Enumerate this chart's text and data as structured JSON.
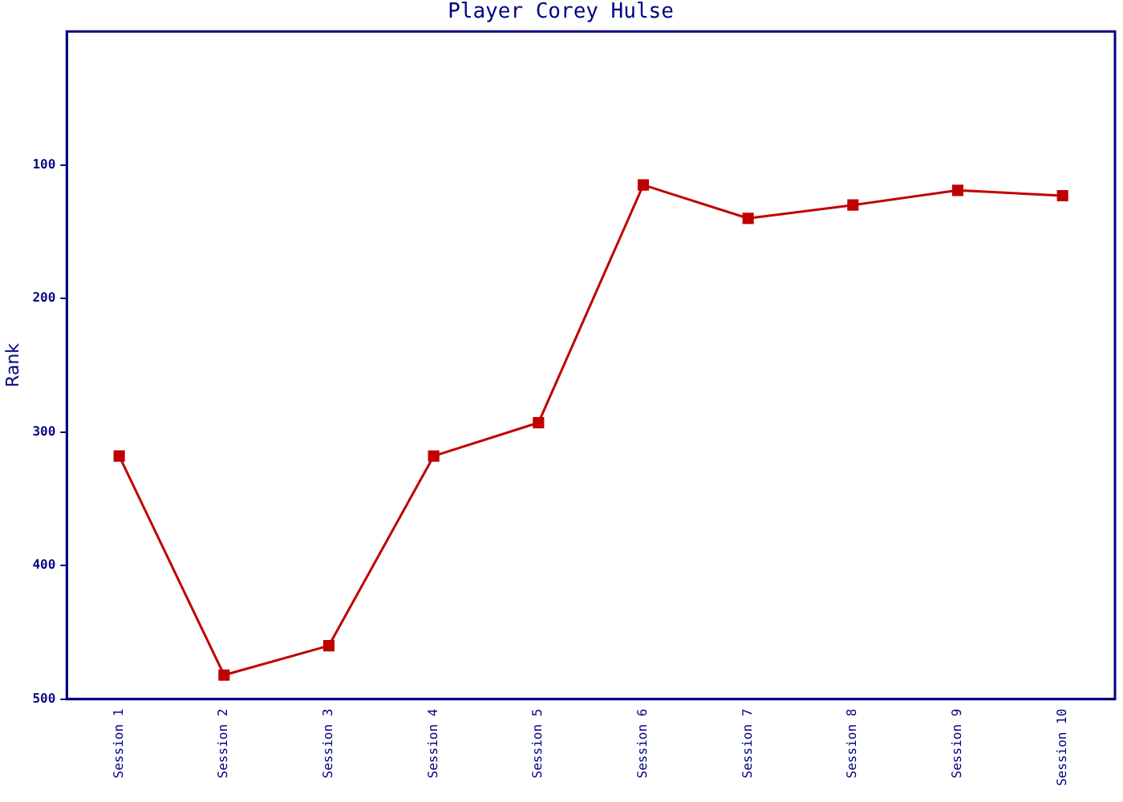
{
  "chart_data": {
    "type": "line",
    "title": "Player Corey Hulse",
    "ylabel": "Rank",
    "categories": [
      "Session 1",
      "Session 2",
      "Session 3",
      "Session 4",
      "Session 5",
      "Session 6",
      "Session 7",
      "Session 8",
      "Session 9",
      "Session 10"
    ],
    "series": [
      {
        "color": "#c00000",
        "values": [
          318,
          482,
          460,
          318,
          293,
          115,
          140,
          130,
          119,
          123
        ]
      }
    ],
    "ylim": [
      500,
      0
    ],
    "yticks": [
      100,
      200,
      300,
      400,
      500
    ],
    "grid": false,
    "legend": false,
    "marker": "square",
    "line_style": "solid"
  }
}
